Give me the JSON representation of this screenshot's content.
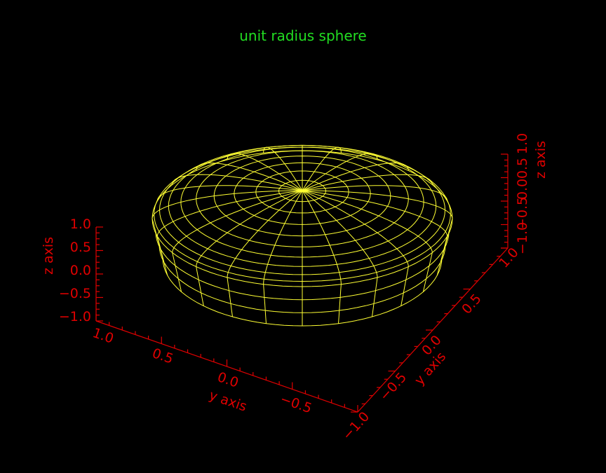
{
  "title": "unit radius sphere",
  "colors": {
    "background": "#000000",
    "title": "#22dd22",
    "axes": "#e00000",
    "mesh": "#ffff33"
  },
  "axes": {
    "z": {
      "label": "z axis",
      "tick_labels": [
        "1.0",
        "0.5",
        "0.0",
        "−0.5",
        "−1.0"
      ]
    },
    "y": {
      "label": "y axis",
      "tick_labels": [
        "1.0",
        "0.5",
        "0.0",
        "−0.5"
      ]
    },
    "x": {
      "label": "y axis",
      "tick_labels": [
        "−1.0",
        "−0.5",
        "0.0",
        "0.5",
        "1.0"
      ]
    },
    "z_right": {
      "label": "z axis",
      "tick_labels": [
        "1.0",
        "0.5",
        "0.0",
        "−0.5",
        "−1.0"
      ]
    }
  },
  "surface": {
    "type": "sphere-wireframe",
    "radius": 1.0,
    "meridians": 24,
    "latitude_rings": 13
  }
}
